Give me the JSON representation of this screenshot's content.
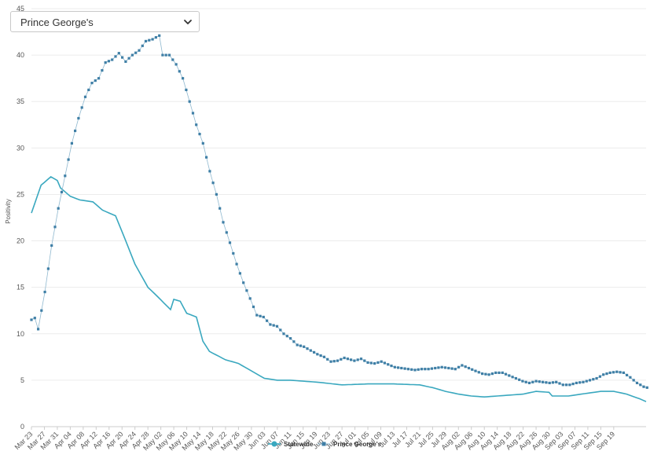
{
  "dropdown": {
    "selected": "Prince George's"
  },
  "chart_data": {
    "type": "line",
    "title": "",
    "xlabel": "",
    "ylabel": "Positivity",
    "ylim": [
      0,
      45
    ],
    "y_ticks": [
      "0",
      "5",
      "10",
      "15",
      "20",
      "25",
      "30",
      "35",
      "40",
      "45"
    ],
    "x_ticks": [
      "Mar 23",
      "Mar 27",
      "Mar 31",
      "Apr 04",
      "Apr 08",
      "Apr 12",
      "Apr 16",
      "Apr 20",
      "Apr 24",
      "Apr 28",
      "May 02",
      "May 06",
      "May 10",
      "May 14",
      "May 18",
      "May 22",
      "May 26",
      "May 30",
      "Jun 03",
      "Jun 07",
      "Jun 11",
      "Jun 15",
      "Jun 19",
      "Jun 23",
      "Jun 27",
      "Jul 01",
      "Jul 05",
      "Jul 09",
      "Jul 13",
      "Jul 17",
      "Jul 21",
      "Jul 25",
      "Jul 29",
      "Aug 02",
      "Aug 06",
      "Aug 10",
      "Aug 14",
      "Aug 18",
      "Aug 22",
      "Aug 26",
      "Aug 30",
      "Sep 03",
      "Sep 07",
      "Sep 11",
      "Sep 15",
      "Sep 19"
    ],
    "grid": true,
    "legend": "bottom",
    "colors": {
      "statewide": "#3aa8bf",
      "county": "#3f7fa6"
    },
    "series": [
      {
        "name": "Statewide",
        "anchors": [
          [
            0,
            23
          ],
          [
            3,
            26
          ],
          [
            6,
            26.9
          ],
          [
            8,
            26.5
          ],
          [
            9,
            25.7
          ],
          [
            12,
            24.8
          ],
          [
            15,
            24.4
          ],
          [
            19,
            24.2
          ],
          [
            22,
            23.3
          ],
          [
            26,
            22.7
          ],
          [
            28,
            21
          ],
          [
            32,
            17.5
          ],
          [
            36,
            15
          ],
          [
            39,
            14
          ],
          [
            43,
            12.6
          ],
          [
            44,
            13.7
          ],
          [
            46,
            13.5
          ],
          [
            48,
            12.2
          ],
          [
            51,
            11.8
          ],
          [
            53,
            9.2
          ],
          [
            55,
            8.1
          ],
          [
            60,
            7.2
          ],
          [
            64,
            6.8
          ],
          [
            68,
            6
          ],
          [
            72,
            5.2
          ],
          [
            76,
            5
          ],
          [
            80,
            5
          ],
          [
            88,
            4.8
          ],
          [
            96,
            4.5
          ],
          [
            104,
            4.6
          ],
          [
            112,
            4.6
          ],
          [
            120,
            4.5
          ],
          [
            124,
            4.2
          ],
          [
            128,
            3.8
          ],
          [
            132,
            3.5
          ],
          [
            136,
            3.3
          ],
          [
            140,
            3.2
          ],
          [
            144,
            3.3
          ],
          [
            148,
            3.4
          ],
          [
            152,
            3.5
          ],
          [
            156,
            3.8
          ],
          [
            160,
            3.7
          ],
          [
            161,
            3.3
          ],
          [
            166,
            3.3
          ],
          [
            172,
            3.6
          ],
          [
            176,
            3.8
          ],
          [
            180,
            3.8
          ],
          [
            184,
            3.5
          ],
          [
            188,
            3
          ],
          [
            190,
            2.7
          ]
        ]
      },
      {
        "name": "Prince George's",
        "anchors": [
          [
            0,
            11.5
          ],
          [
            1,
            11.7
          ],
          [
            2,
            10.5
          ],
          [
            3,
            12.5
          ],
          [
            4,
            14.5
          ],
          [
            5,
            17
          ],
          [
            6,
            19.5
          ],
          [
            8,
            23.5
          ],
          [
            10,
            27
          ],
          [
            12,
            30.5
          ],
          [
            14,
            33.2
          ],
          [
            16,
            35.5
          ],
          [
            18,
            37
          ],
          [
            20,
            37.5
          ],
          [
            22,
            39.2
          ],
          [
            24,
            39.5
          ],
          [
            26,
            40.2
          ],
          [
            28,
            39.3
          ],
          [
            30,
            40
          ],
          [
            32,
            40.5
          ],
          [
            34,
            41.5
          ],
          [
            36,
            41.7
          ],
          [
            38,
            42.1
          ],
          [
            39,
            40
          ],
          [
            41,
            40
          ],
          [
            43,
            39
          ],
          [
            45,
            37.5
          ],
          [
            47,
            35
          ],
          [
            49,
            32.5
          ],
          [
            51,
            30.5
          ],
          [
            53,
            27.5
          ],
          [
            55,
            25
          ],
          [
            57,
            22
          ],
          [
            59,
            19.8
          ],
          [
            61,
            17.5
          ],
          [
            63,
            15.5
          ],
          [
            65,
            13.8
          ],
          [
            67,
            12
          ],
          [
            69,
            11.8
          ],
          [
            71,
            11
          ],
          [
            73,
            10.8
          ],
          [
            75,
            10
          ],
          [
            77,
            9.5
          ],
          [
            79,
            8.8
          ],
          [
            81,
            8.6
          ],
          [
            83,
            8.2
          ],
          [
            85,
            7.8
          ],
          [
            87,
            7.5
          ],
          [
            89,
            7
          ],
          [
            91,
            7.1
          ],
          [
            93,
            7.4
          ],
          [
            96,
            7.1
          ],
          [
            98,
            7.3
          ],
          [
            100,
            6.9
          ],
          [
            102,
            6.8
          ],
          [
            104,
            7
          ],
          [
            106,
            6.7
          ],
          [
            108,
            6.4
          ],
          [
            110,
            6.3
          ],
          [
            112,
            6.2
          ],
          [
            114,
            6.1
          ],
          [
            116,
            6.2
          ],
          [
            118,
            6.2
          ],
          [
            120,
            6.3
          ],
          [
            122,
            6.4
          ],
          [
            124,
            6.3
          ],
          [
            126,
            6.2
          ],
          [
            128,
            6.6
          ],
          [
            130,
            6.3
          ],
          [
            132,
            6
          ],
          [
            134,
            5.7
          ],
          [
            136,
            5.6
          ],
          [
            138,
            5.8
          ],
          [
            140,
            5.8
          ],
          [
            142,
            5.5
          ],
          [
            144,
            5.2
          ],
          [
            146,
            4.9
          ],
          [
            148,
            4.7
          ],
          [
            150,
            4.9
          ],
          [
            152,
            4.8
          ],
          [
            154,
            4.7
          ],
          [
            156,
            4.8
          ],
          [
            158,
            4.5
          ],
          [
            160,
            4.5
          ],
          [
            162,
            4.7
          ],
          [
            164,
            4.8
          ],
          [
            166,
            5
          ],
          [
            168,
            5.2
          ],
          [
            170,
            5.6
          ],
          [
            172,
            5.8
          ],
          [
            174,
            5.9
          ],
          [
            176,
            5.8
          ],
          [
            178,
            5.3
          ],
          [
            180,
            4.7
          ],
          [
            182,
            4.3
          ],
          [
            183,
            4.2
          ]
        ]
      }
    ]
  }
}
